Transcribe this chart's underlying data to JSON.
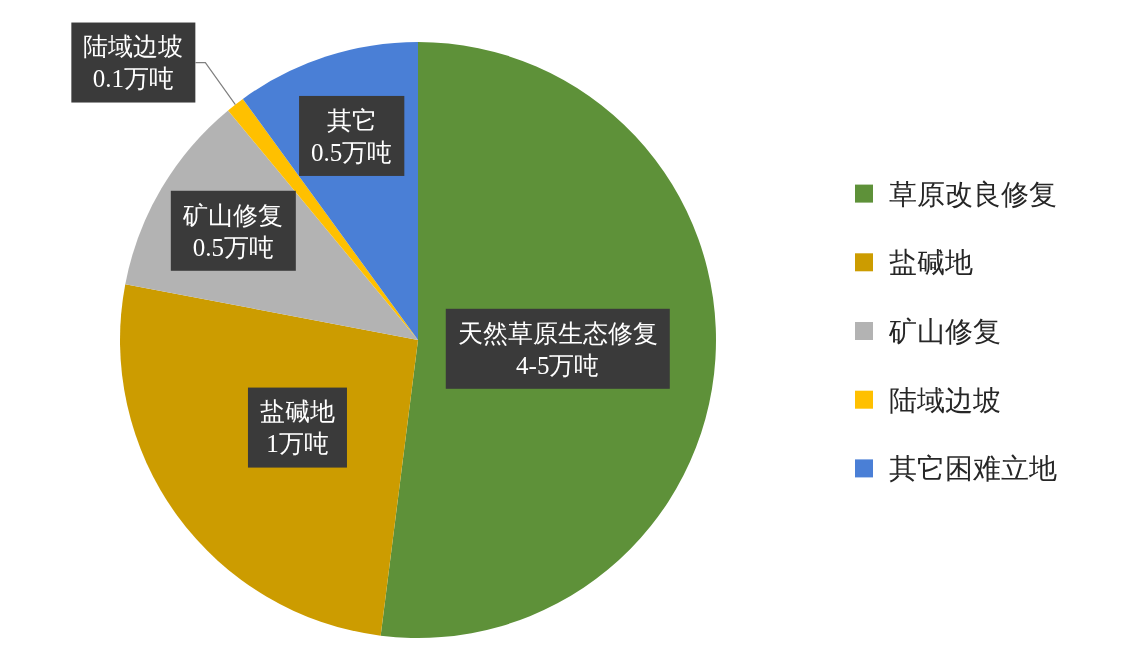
{
  "chart_data": {
    "type": "pie",
    "categories": [
      "草原改良修复",
      "盐碱地",
      "矿山修复",
      "陆域边坡",
      "其它困难立地"
    ],
    "values": [
      52,
      26,
      11,
      1,
      10
    ],
    "colors": [
      "#5e9139",
      "#cc9c00",
      "#b3b3b3",
      "#ffc000",
      "#4a7fd6"
    ],
    "value_labels": [
      "天然草原生态修复\n4-5万吨",
      "盐碱地\n1万吨",
      "矿山修复\n0.5万吨",
      "陆域边坡\n0.1万吨",
      "其它\n0.5万吨"
    ],
    "legend": "right"
  }
}
